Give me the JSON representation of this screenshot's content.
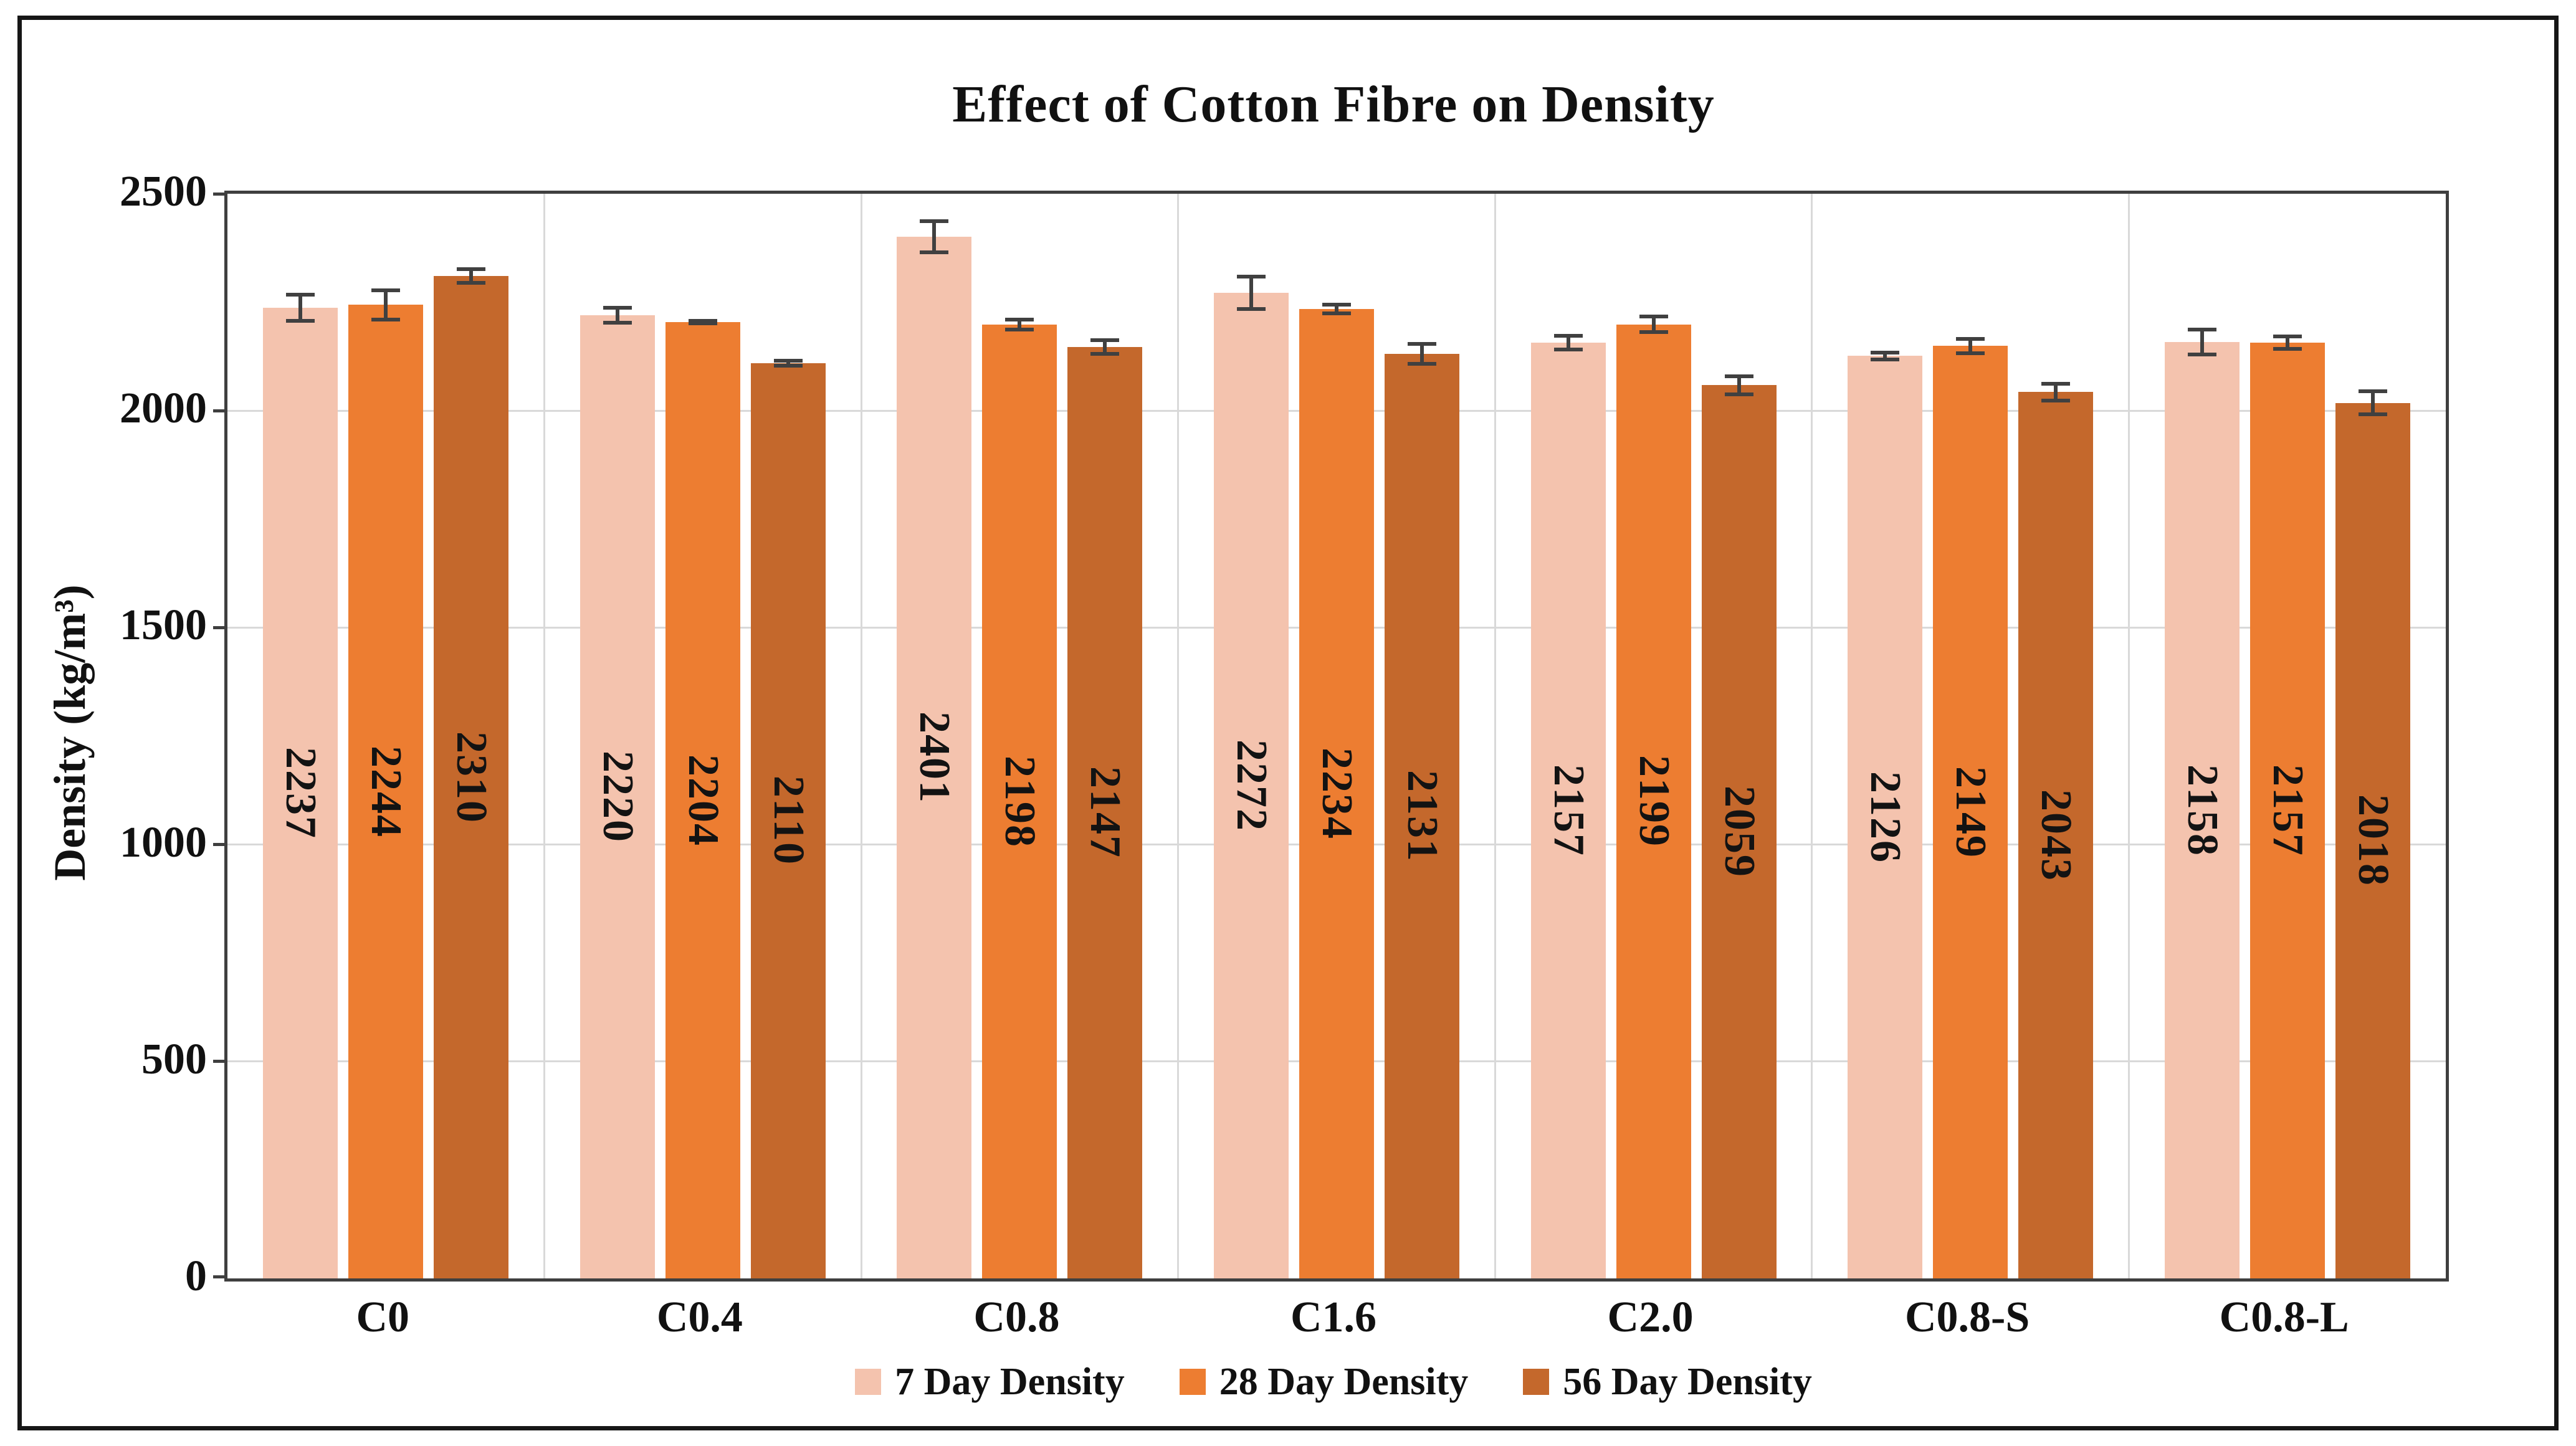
{
  "title": "Effect of Cotton Fibre on Density",
  "y_axis": {
    "label": "Density (kg/m³)",
    "ticks": [
      0,
      500,
      1000,
      1500,
      2000,
      2500
    ],
    "min": 0,
    "max": 2500
  },
  "x_axis": {
    "categories": [
      "C0",
      "C0.4",
      "C0.8",
      "C1.6",
      "C2.0",
      "C0.8-S",
      "C0.8-L"
    ]
  },
  "legend": {
    "items": [
      "7 Day Density",
      "28 Day Density",
      "56 Day Density"
    ],
    "position": "bottom"
  },
  "colors": {
    "series_7_day": "#F4C3AE",
    "series_28_day": "#ED7D31",
    "series_56_day": "#C4682C",
    "gridline": "#D9D9D9",
    "plot_border": "#3F3F3F",
    "error_bar": "#404040",
    "text": "#111111",
    "frame": "#161616",
    "background": "#FFFFFF"
  },
  "chart_data": {
    "type": "bar",
    "title": "Effect of Cotton Fibre on Density",
    "xlabel": "",
    "ylabel": "Density (kg/m³)",
    "ylim": [
      0,
      2500
    ],
    "grid": true,
    "legend_position": "bottom",
    "bar_value_labels": "rotated 90deg, centered inside bars",
    "error_bars": "present, estimated from pixels",
    "categories": [
      "C0",
      "C0.4",
      "C0.8",
      "C1.6",
      "C2.0",
      "C0.8-S",
      "C0.8-L"
    ],
    "series": [
      {
        "name": "7 Day Density",
        "color": "#F4C3AE",
        "values": [
          2237,
          2220,
          2401,
          2272,
          2157,
          2126,
          2158
        ],
        "errors": [
          34,
          21,
          40,
          42,
          20,
          12,
          33
        ]
      },
      {
        "name": "28 Day Density",
        "color": "#ED7D31",
        "values": [
          2244,
          2204,
          2198,
          2234,
          2199,
          2149,
          2157
        ],
        "errors": [
          38,
          7,
          16,
          14,
          22,
          21,
          19
        ]
      },
      {
        "name": "56 Day Density",
        "color": "#C4682C",
        "values": [
          2310,
          2110,
          2147,
          2131,
          2059,
          2043,
          2018
        ],
        "errors": [
          20,
          10,
          20,
          27,
          25,
          24,
          31
        ]
      }
    ]
  }
}
